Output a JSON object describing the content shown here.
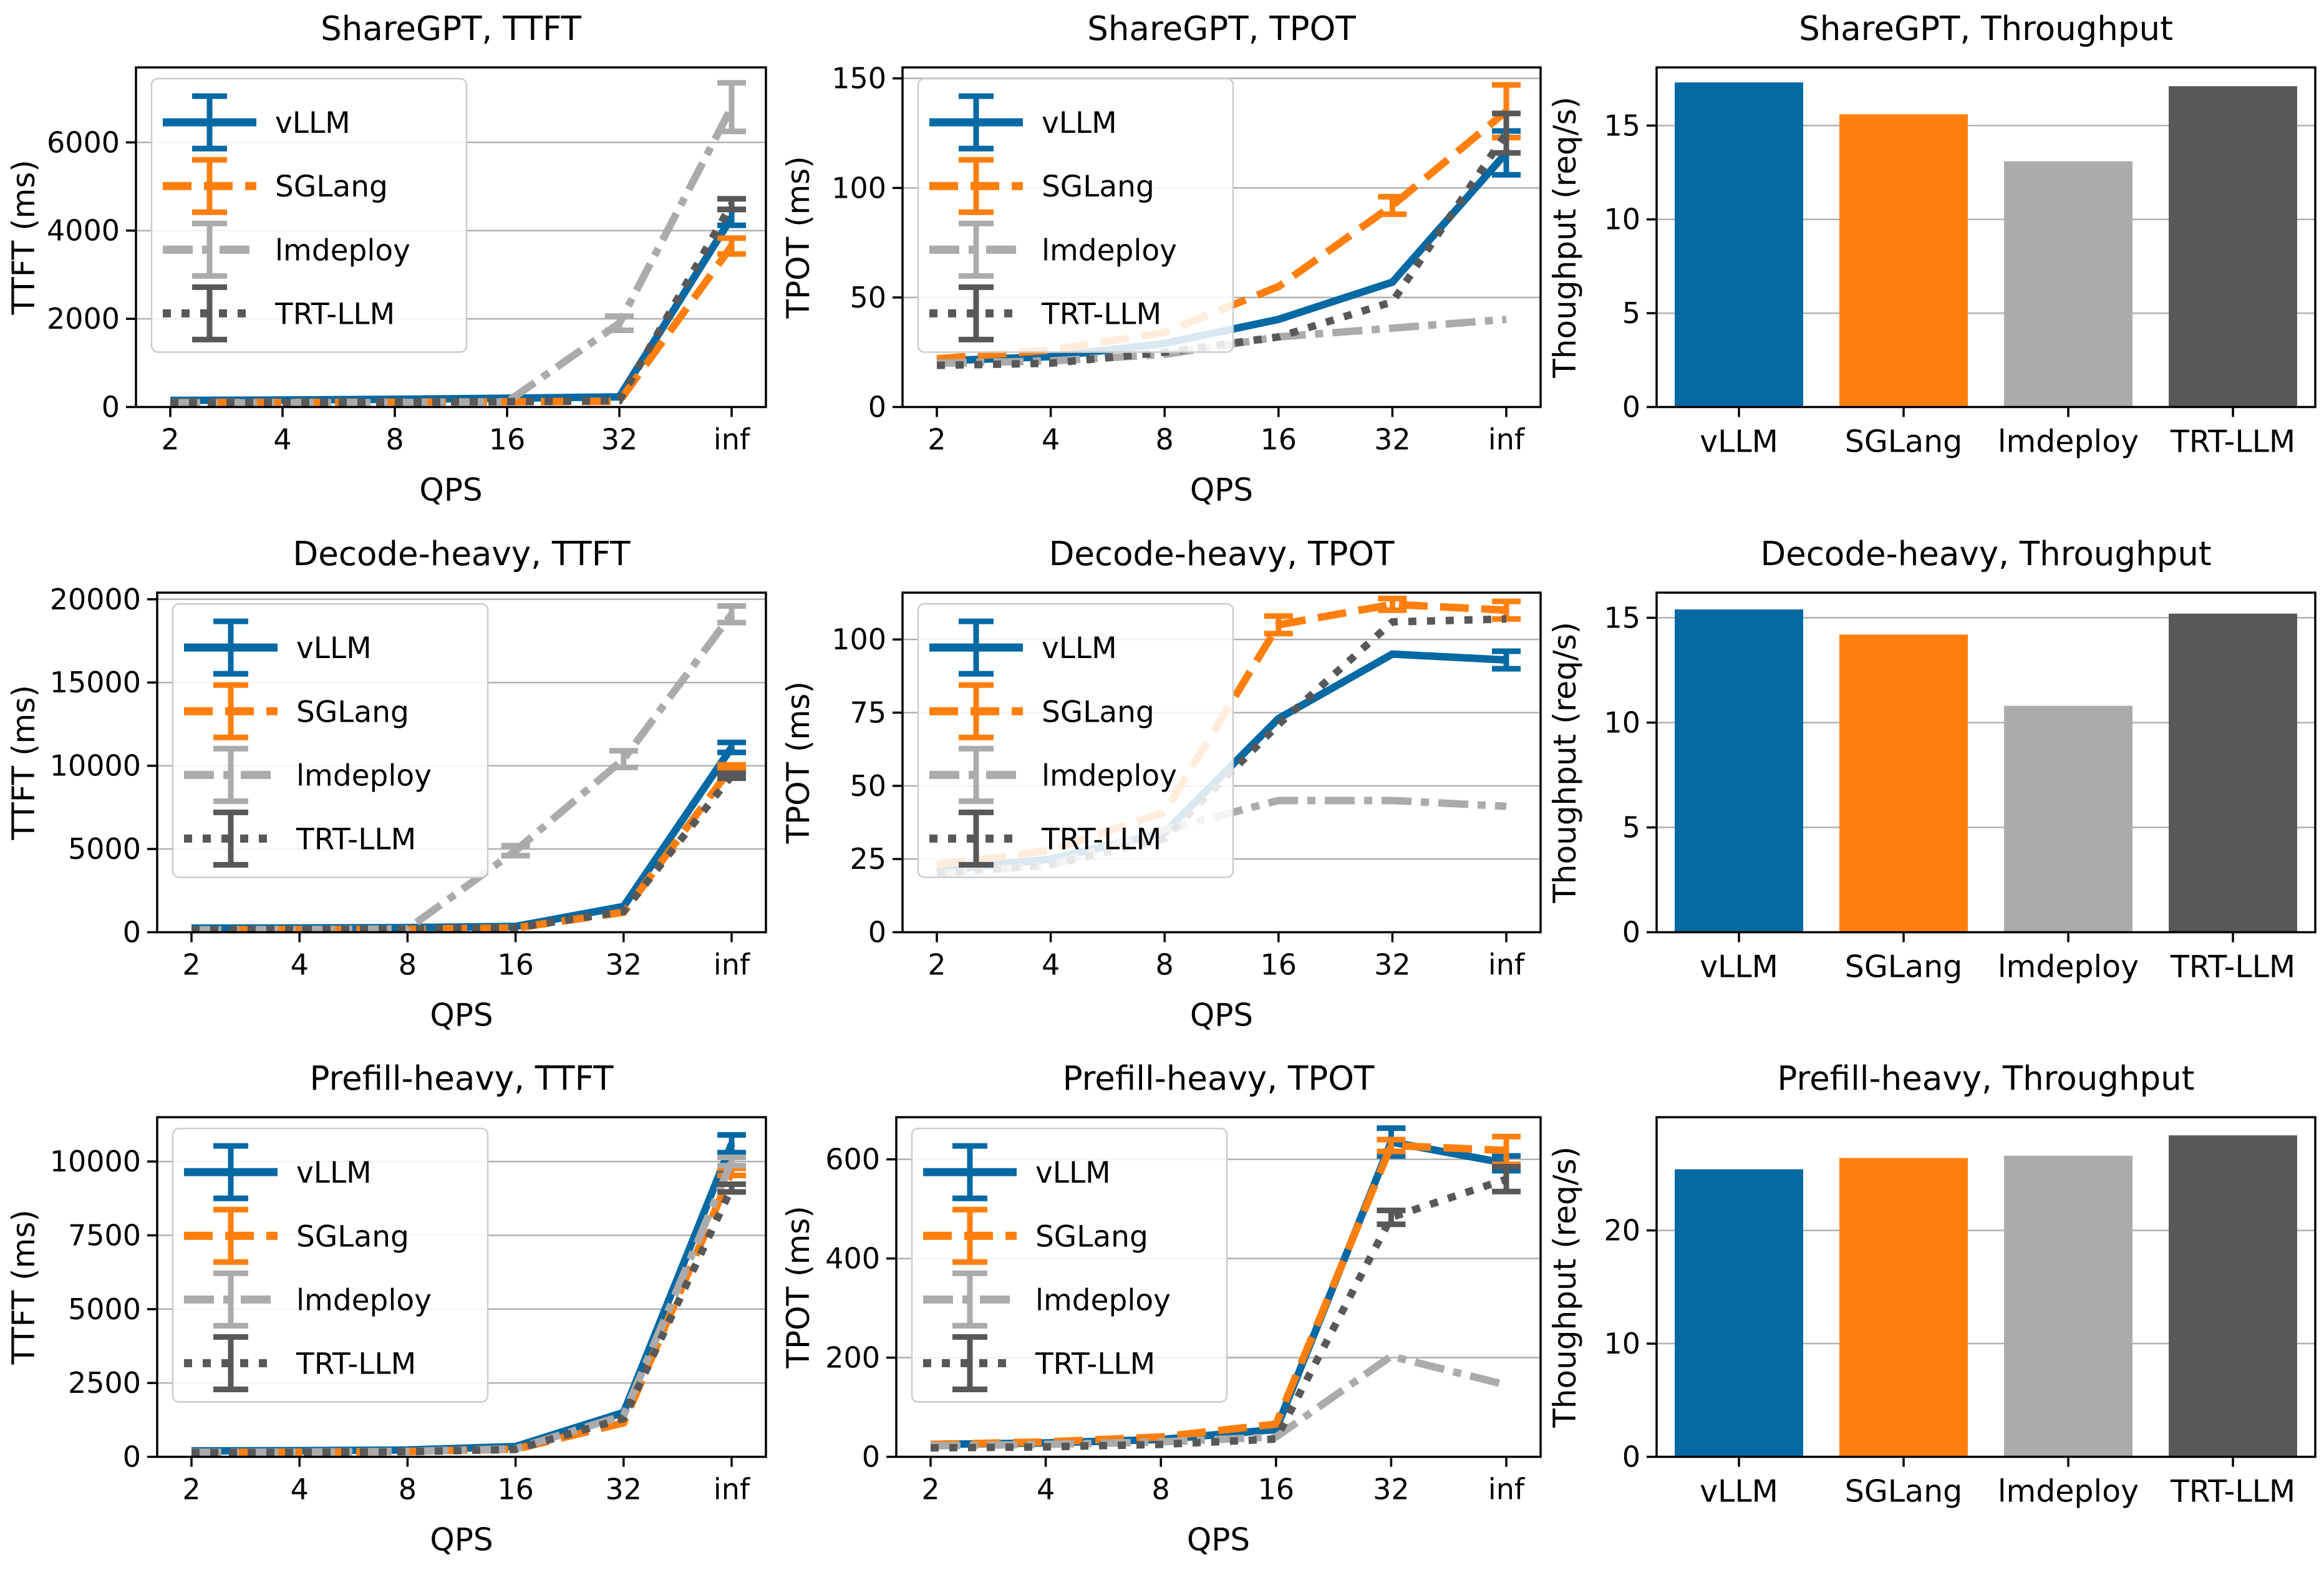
{
  "figure": {
    "background": "#ffffff",
    "grid_color": "#b0b0b0",
    "spine_color": "#000000"
  },
  "frameworks": [
    {
      "name": "vLLM",
      "color": "#0569a4",
      "dash": "solid"
    },
    {
      "name": "SGLang",
      "color": "#ff7f0e",
      "dash": "dashed"
    },
    {
      "name": "lmdeploy",
      "color": "#ababab",
      "dash": "dashdot"
    },
    {
      "name": "TRT-LLM",
      "color": "#585858",
      "dash": "dotted"
    }
  ],
  "qps_ticks": [
    "2",
    "4",
    "8",
    "16",
    "32",
    "inf"
  ],
  "chart_data": [
    {
      "type": "line",
      "title": "ShareGPT, TTFT",
      "ylabel": "TTFT (ms)",
      "xlabel": "QPS",
      "x_categories": [
        "2",
        "4",
        "8",
        "16",
        "32",
        "inf"
      ],
      "yticks": [
        0,
        2000,
        4000,
        6000
      ],
      "ymax": 7700,
      "left": 218,
      "legend": true,
      "grid": true,
      "series": [
        {
          "name": "vLLM",
          "values": [
            150,
            160,
            175,
            200,
            230,
            4300
          ],
          "err": [
            0,
            0,
            0,
            0,
            0,
            180
          ]
        },
        {
          "name": "SGLang",
          "values": [
            100,
            105,
            110,
            120,
            130,
            3650
          ],
          "err": [
            0,
            0,
            0,
            0,
            0,
            180
          ]
        },
        {
          "name": "lmdeploy",
          "values": [
            90,
            95,
            100,
            115,
            1900,
            6800
          ],
          "err": [
            0,
            0,
            0,
            0,
            160,
            550
          ]
        },
        {
          "name": "TRT-LLM",
          "values": [
            95,
            100,
            108,
            120,
            145,
            4600
          ],
          "err": [
            0,
            0,
            0,
            0,
            0,
            120
          ]
        }
      ]
    },
    {
      "type": "line",
      "title": "ShareGPT, TPOT",
      "ylabel": "TPOT (ms)",
      "xlabel": "QPS",
      "x_categories": [
        "2",
        "4",
        "8",
        "16",
        "32",
        "inf"
      ],
      "yticks": [
        0,
        50,
        100,
        150
      ],
      "ymax": 155,
      "left": 205,
      "legend": true,
      "grid": true,
      "series": [
        {
          "name": "vLLM",
          "values": [
            21,
            23,
            29,
            40,
            57,
            116
          ],
          "err": [
            0,
            0,
            0,
            0,
            0,
            10
          ]
        },
        {
          "name": "SGLang",
          "values": [
            22,
            26,
            34,
            55,
            92,
            135
          ],
          "err": [
            0,
            0,
            0,
            0,
            4,
            12
          ]
        },
        {
          "name": "lmdeploy",
          "values": [
            20,
            21,
            24,
            32,
            36,
            40
          ],
          "err": [
            0,
            0,
            0,
            0,
            0,
            0
          ]
        },
        {
          "name": "TRT-LLM",
          "values": [
            19,
            20,
            25,
            32,
            48,
            125
          ],
          "err": [
            0,
            0,
            0,
            0,
            0,
            9
          ]
        }
      ]
    },
    {
      "type": "bar",
      "title": "ShareGPT, Throughput",
      "ylabel": "Thoughput (req/s)",
      "x_categories": [
        "vLLM",
        "SGLang",
        "lmdeploy",
        "TRT-LLM"
      ],
      "yticks": [
        0,
        5,
        10,
        15
      ],
      "ymax": 18.1,
      "left": 172,
      "legend": false,
      "grid": true,
      "values": [
        17.3,
        15.6,
        13.1,
        17.1
      ]
    },
    {
      "type": "line",
      "title": "Decode-heavy, TTFT",
      "ylabel": "TTFT (ms)",
      "xlabel": "QPS",
      "x_categories": [
        "2",
        "4",
        "8",
        "16",
        "32",
        "inf"
      ],
      "yticks": [
        0,
        5000,
        10000,
        15000,
        20000
      ],
      "ymax": 20400,
      "left": 252,
      "legend": true,
      "grid": true,
      "series": [
        {
          "name": "vLLM",
          "values": [
            250,
            260,
            280,
            350,
            1550,
            11100
          ],
          "err": [
            0,
            0,
            0,
            0,
            0,
            300
          ]
        },
        {
          "name": "SGLang",
          "values": [
            150,
            160,
            180,
            260,
            1200,
            9900
          ],
          "err": [
            0,
            0,
            0,
            0,
            0,
            150
          ]
        },
        {
          "name": "lmdeploy",
          "values": [
            150,
            160,
            200,
            4900,
            10400,
            19100
          ],
          "err": [
            0,
            0,
            0,
            300,
            500,
            500
          ]
        },
        {
          "name": "TRT-LLM",
          "values": [
            150,
            160,
            190,
            270,
            1250,
            9400
          ],
          "err": [
            0,
            0,
            0,
            0,
            0,
            150
          ]
        }
      ]
    },
    {
      "type": "line",
      "title": "Decode-heavy, TPOT",
      "ylabel": "TPOT (ms)",
      "xlabel": "QPS",
      "x_categories": [
        "2",
        "4",
        "8",
        "16",
        "32",
        "inf"
      ],
      "yticks": [
        0,
        25,
        50,
        75,
        100
      ],
      "ymax": 116,
      "left": 205,
      "legend": true,
      "grid": true,
      "series": [
        {
          "name": "vLLM",
          "values": [
            21,
            25,
            34,
            73,
            95,
            93
          ],
          "err": [
            0,
            0,
            0,
            0,
            0,
            3
          ]
        },
        {
          "name": "SGLang",
          "values": [
            23,
            28,
            41,
            105,
            112,
            110
          ],
          "err": [
            0,
            0,
            0,
            3,
            2,
            3
          ]
        },
        {
          "name": "lmdeploy",
          "values": [
            20,
            23,
            35,
            45,
            45,
            43
          ],
          "err": [
            0,
            0,
            0,
            0,
            0,
            0
          ]
        },
        {
          "name": "TRT-LLM",
          "values": [
            20,
            23,
            32,
            71,
            106,
            107
          ],
          "err": [
            0,
            0,
            0,
            0,
            0,
            0
          ]
        }
      ]
    },
    {
      "type": "bar",
      "title": "Decode-heavy, Throughput",
      "ylabel": "Thoughput (req/s)",
      "x_categories": [
        "vLLM",
        "SGLang",
        "lmdeploy",
        "TRT-LLM"
      ],
      "yticks": [
        0,
        5,
        10,
        15
      ],
      "ymax": 16.2,
      "left": 172,
      "legend": false,
      "grid": true,
      "values": [
        15.4,
        14.2,
        10.8,
        15.2
      ]
    },
    {
      "type": "line",
      "title": "Prefill-heavy, TTFT",
      "ylabel": "TTFT (ms)",
      "xlabel": "QPS",
      "x_categories": [
        "2",
        "4",
        "8",
        "16",
        "32",
        "inf"
      ],
      "yticks": [
        0,
        2500,
        5000,
        7500,
        10000
      ],
      "ymax": 11500,
      "left": 252,
      "legend": true,
      "grid": true,
      "series": [
        {
          "name": "vLLM",
          "values": [
            200,
            210,
            230,
            350,
            1500,
            10600
          ],
          "err": [
            0,
            0,
            0,
            0,
            0,
            300
          ]
        },
        {
          "name": "SGLang",
          "values": [
            150,
            160,
            180,
            260,
            1150,
            9650
          ],
          "err": [
            0,
            0,
            0,
            0,
            0,
            120
          ]
        },
        {
          "name": "lmdeploy",
          "values": [
            150,
            160,
            185,
            270,
            1400,
            10000
          ],
          "err": [
            0,
            0,
            0,
            0,
            0,
            140
          ]
        },
        {
          "name": "TRT-LLM",
          "values": [
            140,
            150,
            175,
            250,
            1300,
            9100
          ],
          "err": [
            0,
            0,
            0,
            0,
            0,
            130
          ]
        }
      ]
    },
    {
      "type": "line",
      "title": "Prefill-heavy, TPOT",
      "ylabel": "TPOT (ms)",
      "xlabel": "QPS",
      "x_categories": [
        "2",
        "4",
        "8",
        "16",
        "32",
        "inf"
      ],
      "yticks": [
        0,
        200,
        400,
        600
      ],
      "ymax": 685,
      "left": 195,
      "legend": true,
      "grid": true,
      "series": [
        {
          "name": "vLLM",
          "values": [
            25,
            28,
            35,
            55,
            635,
            592
          ],
          "err": [
            0,
            0,
            0,
            0,
            28,
            15
          ]
        },
        {
          "name": "SGLang",
          "values": [
            25,
            30,
            40,
            66,
            628,
            618
          ],
          "err": [
            0,
            0,
            0,
            0,
            12,
            28
          ]
        },
        {
          "name": "lmdeploy",
          "values": [
            22,
            25,
            30,
            40,
            203,
            145
          ],
          "err": [
            0,
            0,
            0,
            0,
            0,
            0
          ]
        },
        {
          "name": "TRT-LLM",
          "values": [
            18,
            20,
            25,
            36,
            483,
            560
          ],
          "err": [
            0,
            0,
            0,
            0,
            14,
            25
          ]
        }
      ]
    },
    {
      "type": "bar",
      "title": "Prefill-heavy, Throughput",
      "ylabel": "Thoughput (req/s)",
      "x_categories": [
        "vLLM",
        "SGLang",
        "lmdeploy",
        "TRT-LLM"
      ],
      "yticks": [
        0,
        10,
        20
      ],
      "ymax": 30,
      "left": 172,
      "legend": false,
      "grid": true,
      "values": [
        25.4,
        26.4,
        26.6,
        28.4
      ]
    }
  ]
}
